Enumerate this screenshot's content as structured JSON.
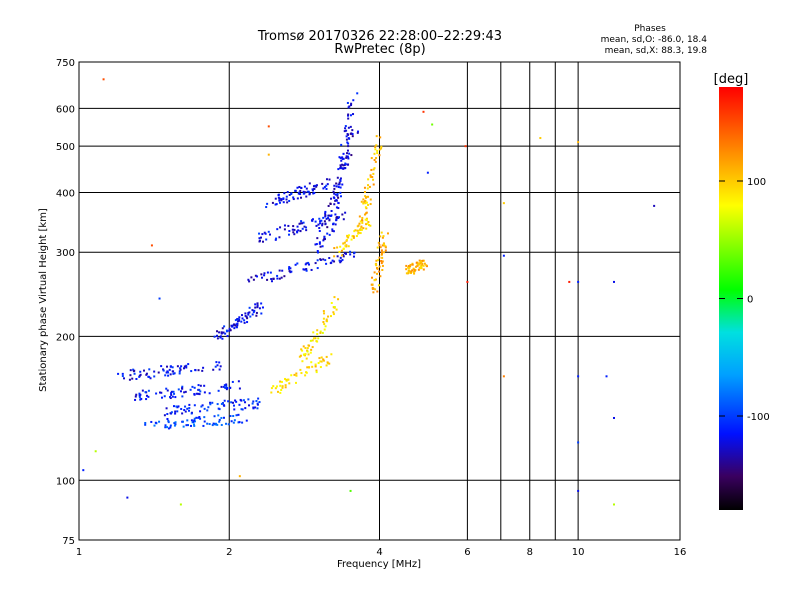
{
  "chart_data": {
    "type": "scatter",
    "title": "Tromsø 20170326 22:28:00–22:29:43",
    "subtitle": "RwPretec (8p)",
    "xlabel": "Frequency [MHz]",
    "ylabel": "Stationary phase Virtual Height [km]",
    "x_scale": "log",
    "y_scale": "log",
    "xlim": [
      1,
      16
    ],
    "ylim": [
      75,
      750
    ],
    "x_ticks": [
      1,
      2,
      4,
      6,
      8,
      10,
      16
    ],
    "y_ticks": [
      75,
      100,
      200,
      300,
      400,
      500,
      600,
      750
    ],
    "grid": true,
    "phase_stats": {
      "heading": "Phases",
      "line1": "mean, sd,O: -86.0, 18.4",
      "line2": "mean, sd,X:  88.3, 19.8"
    },
    "colorbar": {
      "label": "[deg]",
      "range": [
        -180,
        180
      ],
      "ticks": [
        "100",
        "0",
        "-100"
      ],
      "tick_values": [
        100,
        0,
        -100
      ]
    },
    "o_trace_segments": [
      {
        "f0": 1.2,
        "f1": 1.95,
        "h0": 165,
        "h1": 175,
        "phase": -118
      },
      {
        "f0": 1.3,
        "f1": 2.1,
        "h0": 150,
        "h1": 158,
        "phase": -112
      },
      {
        "f0": 1.35,
        "f1": 2.15,
        "h0": 130,
        "h1": 135,
        "phase": -95
      },
      {
        "f0": 1.5,
        "f1": 2.3,
        "h0": 140,
        "h1": 145,
        "phase": -108
      },
      {
        "f0": 1.9,
        "f1": 2.3,
        "h0": 200,
        "h1": 230,
        "phase": -118
      },
      {
        "f0": 2.2,
        "f1": 3.6,
        "h0": 260,
        "h1": 300,
        "phase": -120
      },
      {
        "f0": 2.3,
        "f1": 3.4,
        "h0": 320,
        "h1": 360,
        "phase": -118
      },
      {
        "f0": 2.4,
        "f1": 3.2,
        "h0": 380,
        "h1": 420,
        "phase": -120
      },
      {
        "f0": 3.0,
        "f1": 3.6,
        "h0": 300,
        "h1": 560,
        "phase": -125
      },
      {
        "f0": 3.2,
        "f1": 3.55,
        "h0": 330,
        "h1": 640,
        "phase": -122
      }
    ],
    "x_trace_segments": [
      {
        "f0": 2.45,
        "f1": 3.2,
        "h0": 155,
        "h1": 180,
        "phase": 95
      },
      {
        "f0": 2.8,
        "f1": 3.3,
        "h0": 180,
        "h1": 240,
        "phase": 90
      },
      {
        "f0": 3.3,
        "f1": 3.8,
        "h0": 300,
        "h1": 350,
        "phase": 100
      },
      {
        "f0": 3.7,
        "f1": 4.0,
        "h0": 350,
        "h1": 520,
        "phase": 105
      },
      {
        "f0": 3.9,
        "f1": 4.1,
        "h0": 250,
        "h1": 330,
        "phase": 110
      },
      {
        "f0": 4.5,
        "f1": 5.0,
        "h0": 275,
        "h1": 285,
        "phase": 110
      }
    ],
    "isolated_points": [
      {
        "f": 1.12,
        "h": 690,
        "phase": 150
      },
      {
        "f": 1.4,
        "h": 310,
        "phase": 150
      },
      {
        "f": 1.45,
        "h": 240,
        "phase": -100
      },
      {
        "f": 1.25,
        "h": 92,
        "phase": -120
      },
      {
        "f": 1.6,
        "h": 89,
        "phase": 60
      },
      {
        "f": 2.1,
        "h": 102,
        "phase": 110
      },
      {
        "f": 2.4,
        "h": 550,
        "phase": 150
      },
      {
        "f": 2.4,
        "h": 480,
        "phase": 110
      },
      {
        "f": 3.5,
        "h": 95,
        "phase": 30
      },
      {
        "f": 4.9,
        "h": 590,
        "phase": 160
      },
      {
        "f": 5.0,
        "h": 440,
        "phase": -110
      },
      {
        "f": 5.1,
        "h": 555,
        "phase": 40
      },
      {
        "f": 5.95,
        "h": 500,
        "phase": 160
      },
      {
        "f": 6.0,
        "h": 260,
        "phase": 170
      },
      {
        "f": 7.1,
        "h": 380,
        "phase": 100
      },
      {
        "f": 7.1,
        "h": 295,
        "phase": -110
      },
      {
        "f": 7.1,
        "h": 165,
        "phase": 130
      },
      {
        "f": 8.4,
        "h": 520,
        "phase": 100
      },
      {
        "f": 9.6,
        "h": 260,
        "phase": 170
      },
      {
        "f": 10.0,
        "h": 510,
        "phase": 110
      },
      {
        "f": 10.0,
        "h": 260,
        "phase": -110
      },
      {
        "f": 10.0,
        "h": 165,
        "phase": -110
      },
      {
        "f": 10.0,
        "h": 120,
        "phase": -100
      },
      {
        "f": 10.0,
        "h": 95,
        "phase": -120
      },
      {
        "f": 11.4,
        "h": 165,
        "phase": -110
      },
      {
        "f": 11.8,
        "h": 260,
        "phase": -120
      },
      {
        "f": 11.8,
        "h": 135,
        "phase": -120
      },
      {
        "f": 11.8,
        "h": 89,
        "phase": 60
      },
      {
        "f": 14.2,
        "h": 375,
        "phase": -130
      },
      {
        "f": 1.02,
        "h": 105,
        "phase": -110
      },
      {
        "f": 1.08,
        "h": 115,
        "phase": 60
      }
    ]
  }
}
